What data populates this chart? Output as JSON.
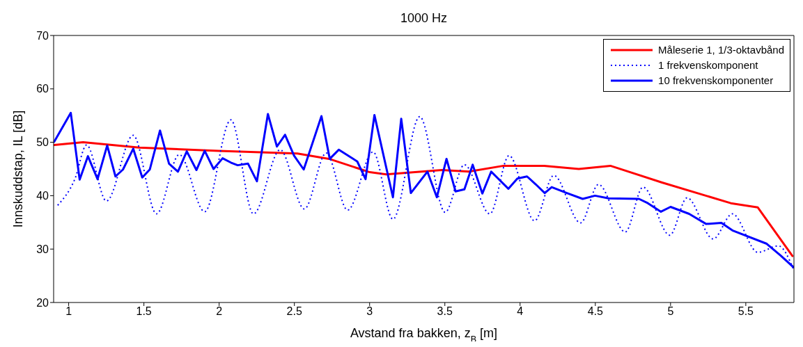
{
  "chart_data": {
    "type": "line",
    "title": "1000 Hz",
    "xlabel": "Avstand fra bakken, z$_{B}$ [m]",
    "ylabel": "Innskuddstap, IL [dB]",
    "xlim": [
      0.9,
      5.82
    ],
    "xticks": [
      1,
      1.5,
      2,
      2.5,
      3,
      3.5,
      4,
      4.5,
      5,
      5.5
    ],
    "ylim": [
      20,
      70
    ],
    "yticks": [
      20,
      30,
      40,
      50,
      60,
      70
    ],
    "grid": false,
    "legend": "top right",
    "marker": "none",
    "series": [
      {
        "name": "Måleserie 1, 1/3-oktavbånd",
        "color": "#ff0000",
        "line_style": "solid",
        "x": [
          0.904,
          1.096,
          1.47,
          2.0,
          2.52,
          2.73,
          3.0,
          3.11,
          3.48,
          3.66,
          3.89,
          4.16,
          4.39,
          4.6,
          4.94,
          5.4,
          5.58,
          5.81
        ],
        "values": [
          49.5,
          50,
          49,
          48.4,
          47.9,
          46.9,
          44.4,
          44,
          44.8,
          44.5,
          45.6,
          45.6,
          45,
          45.6,
          42.5,
          38.6,
          37.8,
          28.7
        ]
      },
      {
        "name": "1 frekvenskomponent",
        "color": "#0000ff",
        "line_style": "dotted",
        "x": [
          0.927,
          1.041,
          1.119,
          1.251,
          1.429,
          1.584,
          1.735,
          1.904,
          2.078,
          2.228,
          2.406,
          2.566,
          2.712,
          2.854,
          3.023,
          3.155,
          3.333,
          3.502,
          3.63,
          3.799,
          3.927,
          4.096,
          4.224,
          4.402,
          4.521,
          4.699,
          4.817,
          4.995,
          5.11,
          5.283,
          5.411,
          5.58,
          5.717,
          5.817
        ],
        "values": [
          38.2,
          43.1,
          49.5,
          39,
          51.3,
          36.6,
          47.7,
          37,
          54.2,
          36.6,
          48.6,
          37.5,
          48,
          37.3,
          48.2,
          35.6,
          54.8,
          36.9,
          45.8,
          36.6,
          47.5,
          35.3,
          43.8,
          34.9,
          42.1,
          33.2,
          41.6,
          32.6,
          39.6,
          31.9,
          36.6,
          29.4,
          30.6,
          26.2
        ]
      },
      {
        "name": "10 frekvenskomponenter",
        "color": "#0000ff",
        "line_style": "solid",
        "x": [
          0.904,
          1.014,
          1.073,
          1.128,
          1.192,
          1.256,
          1.311,
          1.361,
          1.429,
          1.489,
          1.539,
          1.607,
          1.667,
          1.726,
          1.785,
          1.849,
          1.904,
          1.963,
          2.023,
          2.078,
          2.123,
          2.192,
          2.251,
          2.324,
          2.384,
          2.438,
          2.498,
          2.562,
          2.68,
          2.735,
          2.795,
          2.918,
          2.973,
          3.032,
          3.155,
          3.21,
          3.274,
          3.384,
          3.447,
          3.511,
          3.571,
          3.63,
          3.685,
          3.749,
          3.808,
          3.922,
          3.982,
          4.046,
          4.105,
          4.164,
          4.21,
          4.311,
          4.416,
          4.498,
          4.589,
          4.79,
          4.849,
          4.936,
          5.0,
          5.123,
          5.237,
          5.338,
          5.411,
          5.639,
          5.731,
          5.817
        ],
        "values": [
          50.1,
          55.5,
          43,
          47.4,
          43.1,
          49.4,
          43.6,
          44.9,
          48.8,
          43.4,
          44.9,
          52.2,
          46,
          44.5,
          48.3,
          44.8,
          48.4,
          45,
          47,
          46.2,
          45.7,
          46,
          42.7,
          55.3,
          49.2,
          51.4,
          47.5,
          44.9,
          54.9,
          46.9,
          48.6,
          46.4,
          43.1,
          55.1,
          39.7,
          54.4,
          40.5,
          44.5,
          39.7,
          46.9,
          40.8,
          41.2,
          45.8,
          40.4,
          44.5,
          41.3,
          43.2,
          43.6,
          42.1,
          40.5,
          41.6,
          40.5,
          39.4,
          40,
          39.5,
          39.4,
          38.6,
          37,
          37.9,
          36.6,
          34.7,
          34.9,
          33.5,
          31,
          28.8,
          26.6
        ]
      }
    ]
  }
}
